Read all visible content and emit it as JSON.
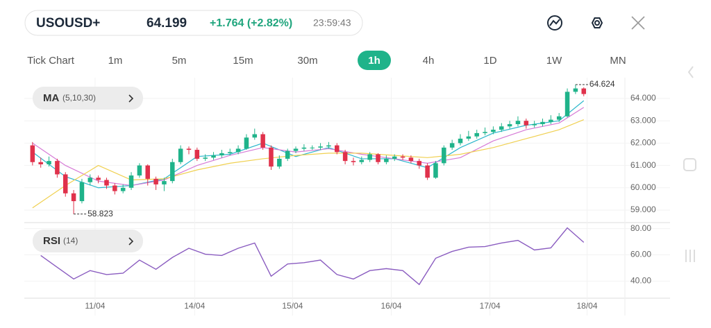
{
  "header": {
    "symbol": "USOUSD+",
    "price": "64.199",
    "change": "+1.764 (+2.82%)",
    "time": "23:59:43"
  },
  "toolbar": {
    "timeframes": [
      "Tick Chart",
      "1m",
      "5m",
      "15m",
      "30m",
      "1h",
      "4h",
      "1D",
      "1W",
      "MN"
    ],
    "active": 5
  },
  "chart_data": [
    {
      "type": "candlestick",
      "indicator": {
        "name": "MA",
        "params": "(5,10,30)"
      },
      "x": [
        1,
        2,
        3,
        4,
        5,
        6,
        7,
        8,
        9,
        10,
        11,
        12,
        13,
        14,
        15,
        16,
        17,
        18,
        19,
        20,
        21,
        22,
        23,
        24,
        25,
        26,
        27,
        28,
        29,
        30,
        31,
        32,
        33,
        34,
        35,
        36,
        37,
        38,
        39,
        40,
        41,
        42,
        43,
        44,
        45,
        46,
        47,
        48,
        49,
        50,
        51,
        52,
        53,
        54,
        55,
        56,
        57,
        58,
        59,
        60,
        61,
        62,
        63,
        64,
        65,
        66,
        67,
        68
      ],
      "open": [
        61.9,
        61.15,
        61.05,
        61.2,
        60.6,
        59.75,
        59.4,
        60.25,
        60.45,
        60.35,
        60.1,
        59.85,
        60.0,
        60.55,
        61.0,
        60.4,
        60.15,
        60.3,
        61.15,
        61.75,
        61.7,
        61.3,
        61.35,
        61.45,
        61.55,
        61.6,
        61.75,
        62.25,
        62.4,
        61.8,
        60.95,
        61.3,
        61.65,
        61.75,
        61.8,
        61.8,
        61.85,
        61.9,
        61.6,
        61.2,
        61.15,
        61.25,
        61.5,
        61.15,
        61.3,
        61.4,
        61.35,
        61.2,
        61.0,
        60.45,
        61.1,
        61.8,
        62.0,
        62.2,
        62.3,
        62.45,
        62.5,
        62.6,
        62.75,
        62.85,
        63.0,
        62.8,
        62.85,
        62.95,
        63.05,
        63.2,
        64.3,
        64.45
      ],
      "high": [
        62.05,
        61.35,
        61.4,
        61.3,
        60.7,
        59.9,
        60.4,
        60.6,
        60.55,
        60.45,
        60.2,
        60.15,
        60.7,
        61.1,
        61.05,
        60.5,
        60.45,
        61.3,
        61.9,
        61.85,
        61.8,
        61.5,
        61.6,
        61.7,
        61.75,
        61.9,
        62.4,
        62.65,
        62.5,
        61.9,
        61.45,
        61.75,
        61.85,
        61.95,
        61.9,
        62.0,
        62.05,
        62.0,
        61.7,
        61.35,
        61.4,
        61.6,
        61.55,
        61.45,
        61.5,
        61.5,
        61.45,
        61.3,
        61.1,
        61.2,
        61.9,
        62.15,
        62.4,
        62.55,
        62.6,
        62.7,
        62.75,
        62.9,
        63.0,
        63.2,
        63.1,
        63.0,
        63.1,
        63.25,
        63.35,
        64.45,
        64.624,
        64.5
      ],
      "low": [
        61.0,
        60.9,
        60.95,
        60.45,
        59.6,
        58.823,
        59.3,
        60.1,
        60.2,
        59.95,
        59.7,
        59.75,
        59.9,
        60.45,
        60.1,
        59.9,
        59.85,
        60.2,
        61.05,
        61.5,
        61.2,
        61.2,
        61.25,
        61.35,
        61.45,
        61.5,
        61.7,
        62.15,
        61.7,
        60.8,
        60.85,
        61.2,
        61.55,
        61.65,
        61.7,
        61.7,
        61.75,
        61.5,
        61.05,
        61.0,
        61.05,
        61.15,
        61.05,
        61.05,
        61.2,
        61.25,
        61.1,
        60.85,
        60.35,
        60.4,
        61.0,
        61.7,
        61.9,
        62.1,
        62.2,
        62.35,
        62.4,
        62.5,
        62.65,
        62.75,
        62.65,
        62.7,
        62.75,
        62.85,
        62.95,
        63.15,
        64.2,
        64.1
      ],
      "close": [
        61.15,
        61.05,
        61.2,
        60.6,
        59.75,
        59.4,
        60.25,
        60.45,
        60.35,
        60.1,
        59.85,
        60.0,
        60.55,
        61.0,
        60.4,
        60.15,
        60.3,
        61.15,
        61.75,
        61.7,
        61.3,
        61.35,
        61.45,
        61.55,
        61.6,
        61.75,
        62.25,
        62.4,
        61.8,
        60.95,
        61.3,
        61.65,
        61.75,
        61.8,
        61.8,
        61.85,
        61.9,
        61.6,
        61.2,
        61.15,
        61.25,
        61.5,
        61.15,
        61.3,
        61.4,
        61.35,
        61.2,
        61.0,
        60.45,
        61.1,
        61.8,
        62.0,
        62.2,
        62.3,
        62.45,
        62.5,
        62.6,
        62.75,
        62.85,
        63.0,
        62.8,
        62.85,
        62.95,
        63.05,
        63.2,
        64.3,
        64.45,
        64.2
      ],
      "up_color": "#1fb38a",
      "down_color": "#e0314b",
      "series": [
        {
          "color": "#2bb7cc",
          "x": [
            1,
            5,
            9,
            13,
            17,
            21,
            25,
            29,
            33,
            37,
            41,
            45,
            49,
            53,
            57,
            61,
            65,
            68
          ],
          "values": [
            61.6,
            60.5,
            60.0,
            60.1,
            60.4,
            61.4,
            61.5,
            62.0,
            61.4,
            61.8,
            61.3,
            61.3,
            60.9,
            61.8,
            62.45,
            62.8,
            63.0,
            63.9
          ]
        },
        {
          "color": "#d67ad6",
          "x": [
            1,
            5,
            9,
            13,
            17,
            21,
            25,
            29,
            33,
            37,
            41,
            45,
            49,
            53,
            57,
            61,
            65,
            68
          ],
          "values": [
            62.0,
            61.0,
            60.3,
            60.1,
            60.35,
            61.0,
            61.45,
            61.8,
            61.6,
            61.75,
            61.5,
            61.3,
            61.1,
            61.35,
            62.1,
            62.6,
            62.9,
            63.6
          ]
        },
        {
          "color": "#f0d050",
          "x": [
            1,
            5,
            9,
            13,
            17,
            21,
            25,
            29,
            33,
            37,
            41,
            45,
            49,
            53,
            57,
            61,
            65,
            68
          ],
          "values": [
            59.1,
            60.1,
            61.0,
            60.35,
            60.4,
            60.8,
            61.1,
            61.3,
            61.45,
            61.55,
            61.55,
            61.45,
            61.35,
            61.5,
            61.8,
            62.2,
            62.6,
            63.05
          ]
        }
      ],
      "xlim": [
        0,
        73
      ],
      "ylim": [
        58.47,
        64.84
      ],
      "yticks": [
        {
          "value": 59,
          "label": "59.000"
        },
        {
          "value": 60,
          "label": "60.000"
        },
        {
          "value": 61,
          "label": "61.000"
        },
        {
          "value": 62,
          "label": "62.000"
        },
        {
          "value": 63,
          "label": "63.000"
        },
        {
          "value": 64,
          "label": "64.000"
        }
      ],
      "annotations": [
        "64.624",
        "58.823"
      ]
    },
    {
      "type": "line",
      "indicator": {
        "name": "RSI",
        "params": "(14)"
      },
      "series": [
        {
          "color": "#8a5cc0",
          "x": [
            2,
            4,
            6,
            8,
            10,
            12,
            14,
            16,
            18,
            20,
            22,
            24,
            26,
            28,
            30,
            32,
            34,
            36,
            38,
            40,
            42,
            44,
            46,
            48,
            50,
            52,
            54,
            56,
            58,
            60,
            62,
            64,
            66,
            68
          ],
          "values": [
            59.5,
            50.5,
            41.6,
            48,
            45,
            46,
            56,
            49,
            58,
            65,
            60.5,
            59.5,
            65,
            69,
            43.7,
            53,
            54,
            56,
            45,
            41.6,
            48,
            49.5,
            48,
            37.4,
            57.4,
            62.6,
            65.8,
            66.3,
            69,
            71,
            63.7,
            65.3,
            80.5,
            69.5
          ]
        }
      ],
      "xlim": [
        0,
        73
      ],
      "ylim": [
        27,
        84
      ],
      "yticks": [
        {
          "value": 40,
          "label": "40.00"
        },
        {
          "value": 60,
          "label": "60.00"
        },
        {
          "value": 80,
          "label": "80.00"
        }
      ],
      "xticks": [
        {
          "value": 8.6,
          "label": "11/04"
        },
        {
          "value": 20.7,
          "label": "14/04"
        },
        {
          "value": 32.6,
          "label": "15/04"
        },
        {
          "value": 44.6,
          "label": "16/04"
        },
        {
          "value": 56.6,
          "label": "17/04"
        },
        {
          "value": 68.4,
          "label": "18/04"
        }
      ]
    }
  ]
}
